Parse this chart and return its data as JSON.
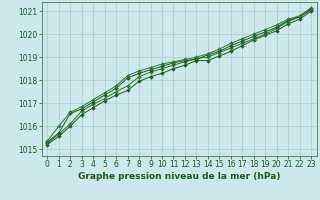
{
  "xlabel": "Graphe pression niveau de la mer (hPa)",
  "ylim": [
    1014.7,
    1021.4
  ],
  "xlim": [
    -0.5,
    23.5
  ],
  "yticks": [
    1015,
    1016,
    1017,
    1018,
    1019,
    1020,
    1021
  ],
  "xticks": [
    0,
    1,
    2,
    3,
    4,
    5,
    6,
    7,
    8,
    9,
    10,
    11,
    12,
    13,
    14,
    15,
    16,
    17,
    18,
    19,
    20,
    21,
    22,
    23
  ],
  "xtick_labels": [
    "0",
    "1",
    "2",
    "3",
    "4",
    "5",
    "6",
    "7",
    "8",
    "9",
    "10",
    "11",
    "12",
    "13",
    "14",
    "15",
    "16",
    "17",
    "18",
    "19",
    "20",
    "21",
    "22",
    "23"
  ],
  "background_color": "#cce8ea",
  "grid_color": "#aacccc",
  "line_colors": [
    "#1a5c1a",
    "#2d7a2d",
    "#1a5c1a",
    "#2d7a2d"
  ],
  "series": [
    [
      1015.2,
      1015.55,
      1016.0,
      1016.5,
      1016.8,
      1017.1,
      1017.35,
      1017.55,
      1017.95,
      1018.15,
      1018.3,
      1018.5,
      1018.65,
      1018.85,
      1018.85,
      1019.05,
      1019.25,
      1019.5,
      1019.75,
      1019.95,
      1020.15,
      1020.45,
      1020.65,
      1021.0
    ],
    [
      1015.25,
      1015.65,
      1016.1,
      1016.65,
      1016.95,
      1017.2,
      1017.5,
      1017.75,
      1018.15,
      1018.35,
      1018.5,
      1018.65,
      1018.8,
      1018.95,
      1019.0,
      1019.2,
      1019.4,
      1019.6,
      1019.8,
      1020.0,
      1020.25,
      1020.55,
      1020.75,
      1021.05
    ],
    [
      1015.3,
      1015.7,
      1016.55,
      1016.75,
      1017.05,
      1017.35,
      1017.65,
      1018.1,
      1018.3,
      1018.45,
      1018.6,
      1018.75,
      1018.85,
      1018.9,
      1019.1,
      1019.25,
      1019.5,
      1019.7,
      1019.9,
      1020.1,
      1020.3,
      1020.6,
      1020.75,
      1021.1
    ],
    [
      1015.35,
      1016.0,
      1016.6,
      1016.85,
      1017.15,
      1017.45,
      1017.75,
      1018.2,
      1018.4,
      1018.55,
      1018.7,
      1018.8,
      1018.9,
      1019.0,
      1019.15,
      1019.35,
      1019.6,
      1019.8,
      1020.0,
      1020.2,
      1020.4,
      1020.65,
      1020.8,
      1021.15
    ]
  ],
  "marker": "D",
  "marker_size": 2.0,
  "linewidth": 0.7,
  "tick_fontsize": 5.5,
  "label_fontsize": 6.5,
  "label_fontweight": "bold",
  "spine_color": "#336633"
}
